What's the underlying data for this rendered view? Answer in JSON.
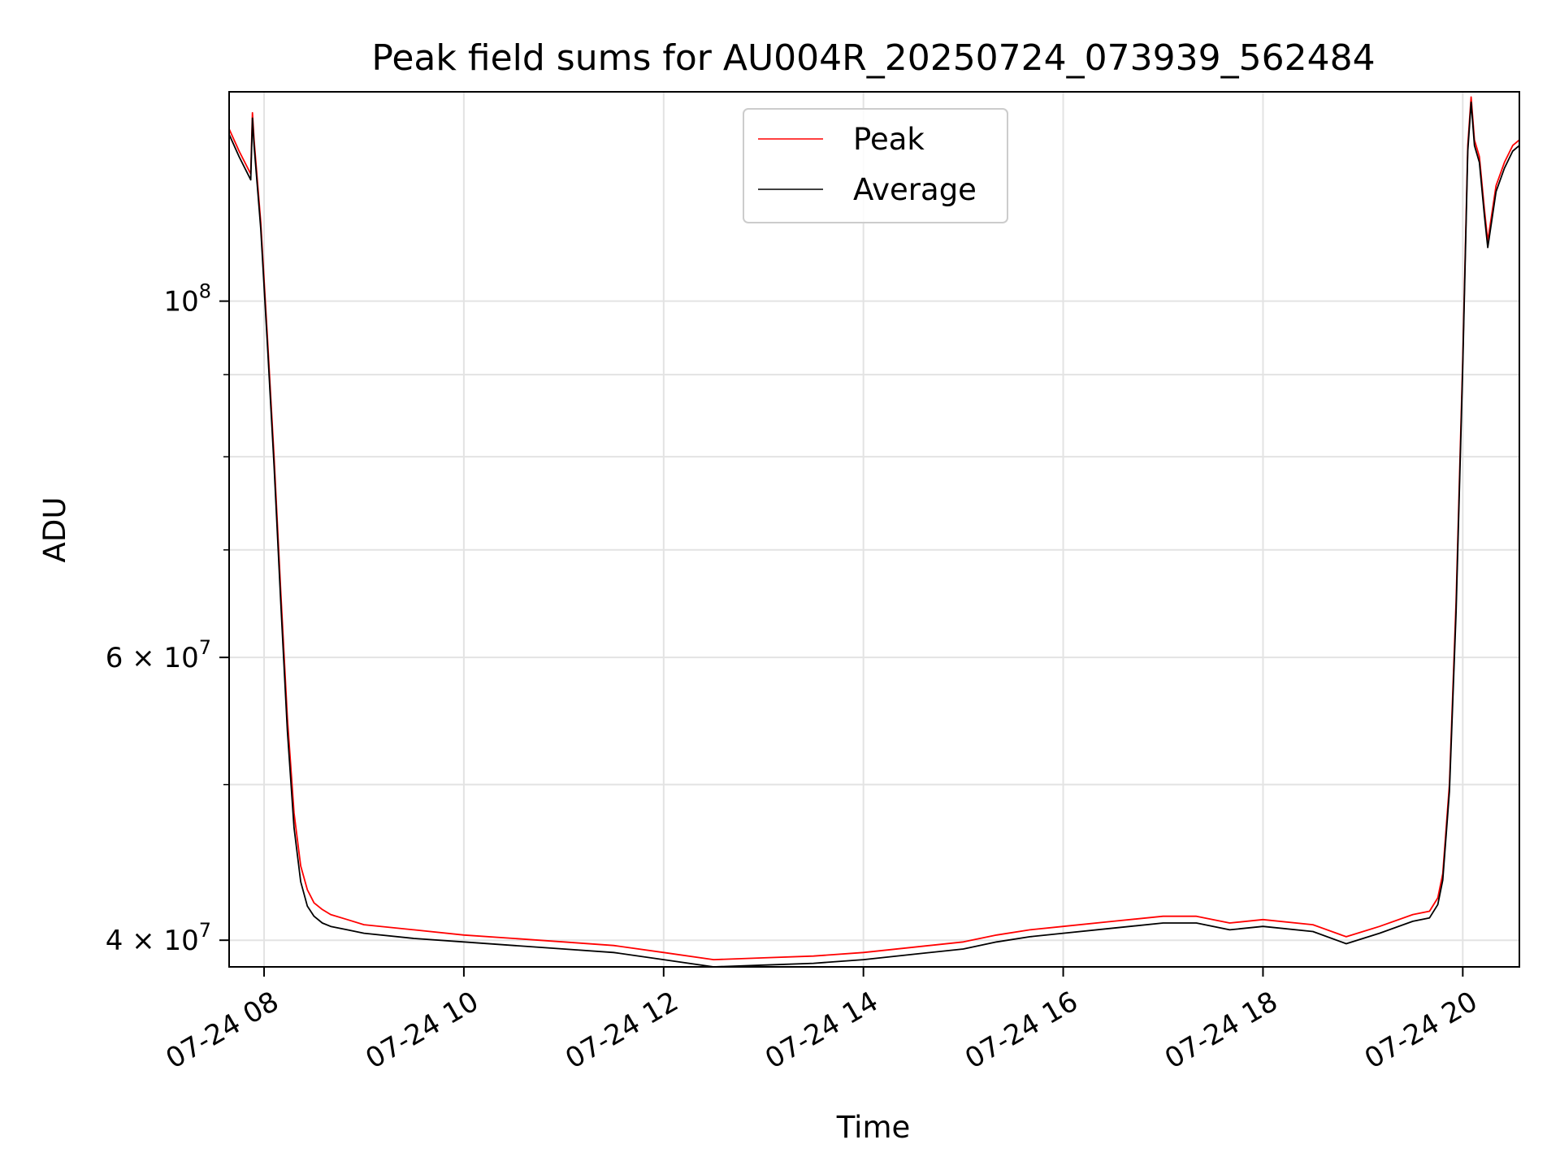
{
  "chart_data": {
    "type": "line",
    "title": "Peak field sums for AU004R_20250724_073939_562484",
    "xlabel": "Time",
    "ylabel": "ADU",
    "yscale": "log",
    "xlim": [
      "07-24 07:39",
      "07-24 20:34"
    ],
    "ylim": [
      38500000,
      135000000
    ],
    "grid": true,
    "legend_position": "top-center",
    "x_ticks": [
      {
        "x": "07-24 08:00",
        "label": "07-24 08"
      },
      {
        "x": "07-24 10:00",
        "label": "07-24 10"
      },
      {
        "x": "07-24 12:00",
        "label": "07-24 12"
      },
      {
        "x": "07-24 14:00",
        "label": "07-24 14"
      },
      {
        "x": "07-24 16:00",
        "label": "07-24 16"
      },
      {
        "x": "07-24 18:00",
        "label": "07-24 18"
      },
      {
        "x": "07-24 20:00",
        "label": "07-24 20"
      }
    ],
    "y_major_ticks": [
      {
        "y": 40000000,
        "base": "4 × 10",
        "exp": "7"
      },
      {
        "y": 60000000,
        "base": "6 × 10",
        "exp": "7"
      },
      {
        "y": 100000000,
        "base": "10",
        "exp": "8"
      }
    ],
    "y_minor_ticks": [
      50000000,
      70000000,
      80000000,
      90000000
    ],
    "series": [
      {
        "name": "Peak",
        "color": "#ff0000",
        "x": [
          "07-24 07:39",
          "07-24 07:45",
          "07-24 07:52",
          "07-24 07:53",
          "07-24 07:54",
          "07-24 07:58",
          "07-24 08:02",
          "08:06",
          "08:10",
          "08:14",
          "08:18",
          "08:22",
          "08:26",
          "08:30",
          "08:35",
          "08:40",
          "08:50",
          "09:00",
          "09:30",
          "10:00",
          "10:30",
          "11:00",
          "11:30",
          "12:00",
          "12:30",
          "13:00",
          "13:30",
          "14:00",
          "14:30",
          "15:00",
          "15:20",
          "15:40",
          "16:00",
          "16:30",
          "17:00",
          "17:20",
          "17:40",
          "18:00",
          "18:30",
          "18:50",
          "19:10",
          "19:30",
          "19:40",
          "19:45",
          "19:48",
          "19:52",
          "19:56",
          "20:00",
          "20:03",
          "20:05",
          "20:07",
          "20:10",
          "20:13",
          "20:15",
          "20:20",
          "20:25",
          "20:30",
          "20:34"
        ],
        "y": [
          128000000,
          124000000,
          120000000,
          131000000,
          126000000,
          112000000,
          95000000,
          80000000,
          66000000,
          55000000,
          48000000,
          44500000,
          43000000,
          42200000,
          41800000,
          41500000,
          41200000,
          40900000,
          40600000,
          40300000,
          40100000,
          39900000,
          39700000,
          39300000,
          38900000,
          39000000,
          39100000,
          39300000,
          39600000,
          39900000,
          40300000,
          40600000,
          40800000,
          41100000,
          41400000,
          41400000,
          41000000,
          41200000,
          40900000,
          40200000,
          40800000,
          41500000,
          41700000,
          42500000,
          44000000,
          50000000,
          65000000,
          92000000,
          125000000,
          134000000,
          126000000,
          123000000,
          114000000,
          109000000,
          118000000,
          122000000,
          125000000,
          126000000
        ]
      },
      {
        "name": "Average",
        "color": "#000000",
        "x": [
          "07-24 07:39",
          "07-24 07:45",
          "07-24 07:52",
          "07-24 07:53",
          "07-24 07:54",
          "07-24 07:58",
          "07-24 08:02",
          "08:06",
          "08:10",
          "08:14",
          "08:18",
          "08:22",
          "08:26",
          "08:30",
          "08:35",
          "08:40",
          "08:50",
          "09:00",
          "09:30",
          "10:00",
          "10:30",
          "11:00",
          "11:30",
          "12:00",
          "12:30",
          "13:00",
          "13:30",
          "14:00",
          "14:30",
          "15:00",
          "15:20",
          "15:40",
          "16:00",
          "16:30",
          "17:00",
          "17:20",
          "17:40",
          "18:00",
          "18:30",
          "18:50",
          "19:10",
          "19:30",
          "19:40",
          "19:45",
          "19:48",
          "19:52",
          "19:56",
          "20:00",
          "20:03",
          "20:05",
          "20:07",
          "20:10",
          "20:13",
          "20:15",
          "20:20",
          "20:25",
          "20:30",
          "20:34"
        ],
        "y": [
          127000000,
          123000000,
          119000000,
          130000000,
          125000000,
          111000000,
          94000000,
          79000000,
          65000000,
          54000000,
          47000000,
          43500000,
          42000000,
          41400000,
          41000000,
          40800000,
          40600000,
          40400000,
          40100000,
          39900000,
          39700000,
          39500000,
          39300000,
          38900000,
          38500000,
          38600000,
          38700000,
          38900000,
          39200000,
          39500000,
          39900000,
          40200000,
          40400000,
          40700000,
          41000000,
          41000000,
          40600000,
          40800000,
          40500000,
          39800000,
          40400000,
          41100000,
          41300000,
          42100000,
          43600000,
          49500000,
          64000000,
          91000000,
          124000000,
          133000000,
          125000000,
          122000000,
          113000000,
          108000000,
          117000000,
          121000000,
          124000000,
          125000000
        ]
      }
    ]
  }
}
